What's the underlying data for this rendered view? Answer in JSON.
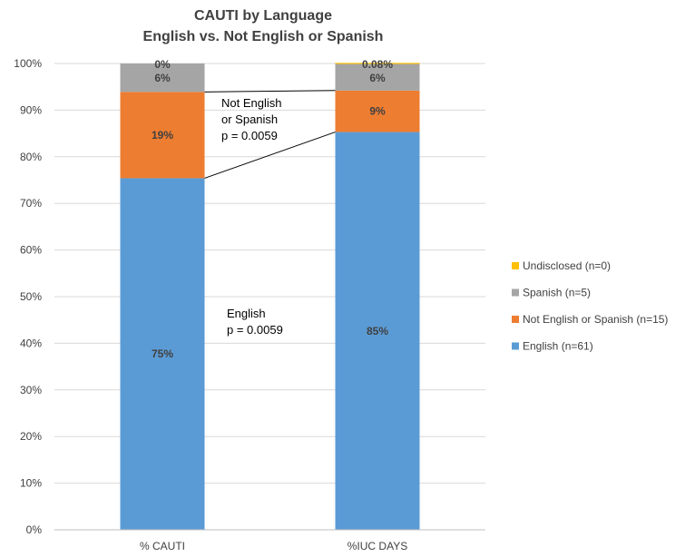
{
  "chart_data": {
    "type": "bar",
    "stacked": true,
    "title": "CAUTI by Language",
    "subtitle": "English vs. Not English or Spanish",
    "categories": [
      "% CAUTI",
      "%IUC DAYS"
    ],
    "ylim": [
      0,
      100
    ],
    "yticks": [
      "0%",
      "10%",
      "20%",
      "30%",
      "40%",
      "50%",
      "60%",
      "70%",
      "80%",
      "90%",
      "100%"
    ],
    "grid": true,
    "legend_position": "right",
    "series": [
      {
        "name": "English (n=61)",
        "color": "#5B9BD5",
        "values": [
          75.4,
          85.3
        ],
        "labels": [
          "75%",
          "85%"
        ]
      },
      {
        "name": "Not English or Spanish (n=15)",
        "color": "#ED7D31",
        "values": [
          18.5,
          8.9
        ],
        "labels": [
          "19%",
          "9%"
        ]
      },
      {
        "name": "Spanish (n=5)",
        "color": "#A5A5A5",
        "values": [
          6.1,
          5.7
        ],
        "labels": [
          "6%",
          "6%"
        ]
      },
      {
        "name": "Undisclosed (n=0)",
        "color": "#FFC000",
        "values": [
          0,
          0.08
        ],
        "labels": [
          "0%",
          "0.08%"
        ]
      }
    ],
    "annotations": [
      {
        "lines": [
          "Not English",
          "or Spanish",
          "p = 0.0059"
        ]
      },
      {
        "lines": [
          "English",
          "p = 0.0059"
        ]
      }
    ]
  }
}
